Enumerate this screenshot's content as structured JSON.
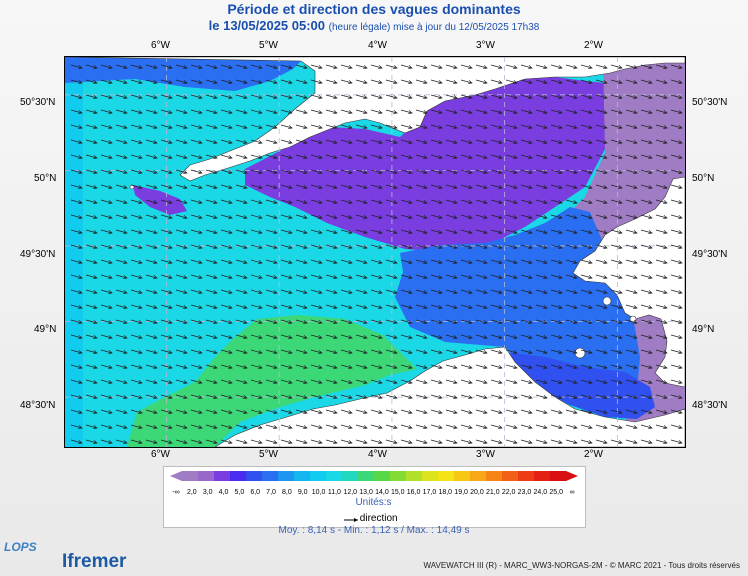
{
  "title": "Période et direction des vagues dominantes",
  "date_line": "le 13/05/2025 05:00",
  "update_note": "(heure légale) mise à jour du 12/05/2025 17h38",
  "lon_labels": [
    "6°W",
    "5°W",
    "4°W",
    "3°W",
    "2°W"
  ],
  "lat_labels": [
    "50°30'N",
    "50°N",
    "49°30'N",
    "49°N",
    "48°30'N"
  ],
  "legend": {
    "ticks": [
      "-∞",
      "2,0",
      "3,0",
      "4,0",
      "5,0",
      "6,0",
      "7,0",
      "8,0",
      "9,0",
      "10,0",
      "11,0",
      "12,0",
      "13,0",
      "14,0",
      "15,0",
      "16,0",
      "17,0",
      "18,0",
      "19,0",
      "20,0",
      "21,0",
      "22,0",
      "23,0",
      "24,0",
      "25,0",
      "∞"
    ],
    "colors": [
      "#a07cc4",
      "#9966cc",
      "#7a3de0",
      "#4a2cf0",
      "#3050f0",
      "#2a6ef2",
      "#1e96f0",
      "#13b6ee",
      "#12ccf0",
      "#1ad8e6",
      "#22d8c0",
      "#3cd878",
      "#58d848",
      "#82dc34",
      "#b2e028",
      "#dce41e",
      "#f4e416",
      "#f6c814",
      "#f6a816",
      "#f68416",
      "#f26018",
      "#ee3c16",
      "#e42014",
      "#d80e10"
    ],
    "unit": "Unités:s",
    "direction_label": "direction"
  },
  "stats": "Moy. : 8,14 s  -  Min. : 1,12 s / Max. : 14,49 s",
  "credits": "WAVEWATCH III (R) - MARC_WW3-NORGAS-2M - © MARC 2021 - Tous droits réservés",
  "logo_lops": "LOPS",
  "logo_ifremer": "Ifremer",
  "map": {
    "lon_range": [
      -6.9,
      -1.4
    ],
    "lat_range": [
      48.17,
      50.75
    ],
    "region_colors": {
      "open_sea": "#1ad8e6",
      "west_edge": "#12ccf0",
      "green_zone": "#3cd878",
      "channel_purple": "#7a3de0",
      "east_lilac": "#a07cc4",
      "mid_blue": "#2a6ef2",
      "dark_blue": "#3050f0",
      "land": "#ffffff",
      "grid": "#b8b8d8"
    },
    "wave_direction": "from west-northwest"
  }
}
